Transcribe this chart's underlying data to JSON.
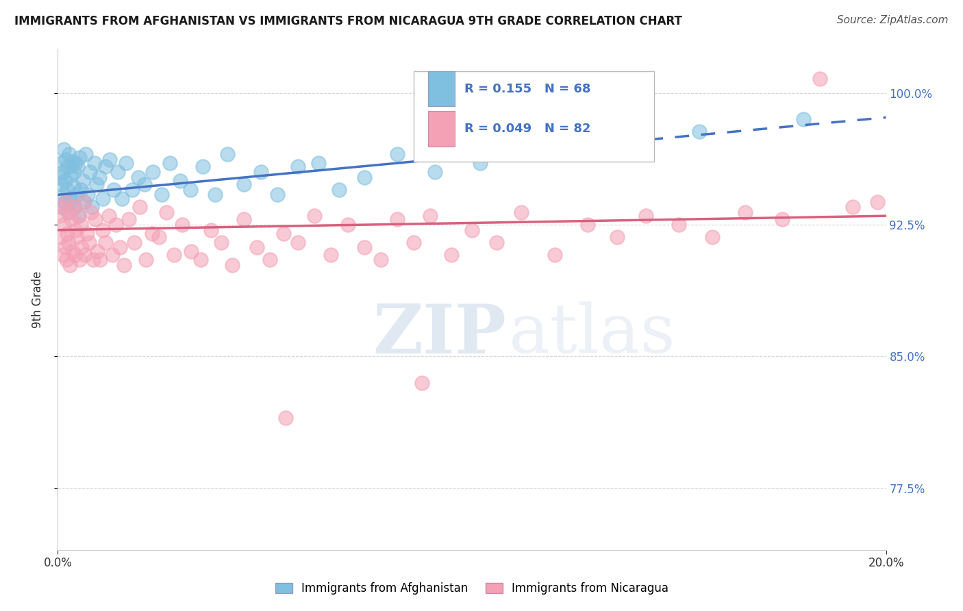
{
  "title": "IMMIGRANTS FROM AFGHANISTAN VS IMMIGRANTS FROM NICARAGUA 9TH GRADE CORRELATION CHART",
  "source": "Source: ZipAtlas.com",
  "ylabel": "9th Grade",
  "xmin": 0.0,
  "xmax": 20.0,
  "ymin": 74.0,
  "ymax": 102.5,
  "yticks": [
    77.5,
    85.0,
    92.5,
    100.0
  ],
  "ytick_labels": [
    "77.5%",
    "85.0%",
    "92.5%",
    "100.0%"
  ],
  "xtick_labels": [
    "0.0%",
    "20.0%"
  ],
  "series_afghanistan": {
    "label": "Immigrants from Afghanistan",
    "color": "#7fbfdf",
    "R": 0.155,
    "N": 68,
    "x": [
      0.05,
      0.07,
      0.09,
      0.1,
      0.12,
      0.14,
      0.15,
      0.17,
      0.18,
      0.2,
      0.22,
      0.24,
      0.25,
      0.27,
      0.29,
      0.31,
      0.33,
      0.35,
      0.37,
      0.39,
      0.41,
      0.43,
      0.45,
      0.47,
      0.5,
      0.53,
      0.56,
      0.6,
      0.64,
      0.68,
      0.72,
      0.77,
      0.82,
      0.88,
      0.94,
      1.0,
      1.08,
      1.16,
      1.25,
      1.35,
      1.45,
      1.55,
      1.65,
      1.8,
      1.95,
      2.1,
      2.3,
      2.5,
      2.7,
      2.95,
      3.2,
      3.5,
      3.8,
      4.1,
      4.5,
      4.9,
      5.3,
      5.8,
      6.3,
      6.8,
      7.4,
      8.2,
      9.1,
      10.2,
      11.5,
      13.0,
      15.5,
      18.0
    ],
    "y": [
      95.2,
      94.8,
      96.0,
      93.5,
      95.5,
      94.2,
      96.8,
      93.8,
      95.0,
      96.2,
      94.5,
      95.8,
      93.2,
      96.5,
      94.0,
      95.3,
      93.8,
      96.1,
      94.7,
      95.5,
      93.5,
      96.0,
      94.2,
      95.8,
      93.0,
      96.3,
      94.5,
      95.0,
      93.8,
      96.5,
      94.2,
      95.5,
      93.5,
      96.0,
      94.8,
      95.2,
      94.0,
      95.8,
      96.2,
      94.5,
      95.5,
      94.0,
      96.0,
      94.5,
      95.2,
      94.8,
      95.5,
      94.2,
      96.0,
      95.0,
      94.5,
      95.8,
      94.2,
      96.5,
      94.8,
      95.5,
      94.2,
      95.8,
      96.0,
      94.5,
      95.2,
      96.5,
      95.5,
      96.0,
      96.8,
      97.2,
      97.8,
      98.5
    ]
  },
  "series_nicaragua": {
    "label": "Immigrants from Nicaragua",
    "color": "#f4a0b5",
    "R": 0.049,
    "N": 82,
    "x": [
      0.05,
      0.08,
      0.1,
      0.12,
      0.15,
      0.17,
      0.19,
      0.21,
      0.23,
      0.26,
      0.28,
      0.3,
      0.33,
      0.35,
      0.38,
      0.4,
      0.43,
      0.46,
      0.49,
      0.52,
      0.55,
      0.58,
      0.62,
      0.66,
      0.7,
      0.75,
      0.8,
      0.85,
      0.9,
      0.96,
      1.02,
      1.09,
      1.16,
      1.24,
      1.32,
      1.4,
      1.5,
      1.6,
      1.72,
      1.85,
      1.98,
      2.12,
      2.28,
      2.45,
      2.62,
      2.8,
      3.0,
      3.22,
      3.45,
      3.7,
      3.95,
      4.22,
      4.5,
      4.8,
      5.12,
      5.45,
      5.8,
      6.2,
      6.6,
      7.0,
      7.4,
      7.8,
      8.2,
      8.6,
      9.0,
      9.5,
      10.0,
      10.6,
      11.2,
      12.0,
      12.8,
      13.5,
      14.2,
      15.0,
      15.8,
      16.6,
      17.5,
      18.4,
      19.2,
      19.8,
      5.5,
      8.8
    ],
    "y": [
      93.0,
      91.8,
      93.5,
      90.8,
      92.5,
      91.2,
      93.8,
      90.5,
      92.0,
      91.5,
      93.2,
      90.2,
      92.8,
      91.0,
      93.5,
      90.8,
      92.2,
      91.8,
      93.0,
      90.5,
      92.5,
      91.2,
      93.8,
      90.8,
      92.0,
      91.5,
      93.2,
      90.5,
      92.8,
      91.0,
      90.5,
      92.2,
      91.5,
      93.0,
      90.8,
      92.5,
      91.2,
      90.2,
      92.8,
      91.5,
      93.5,
      90.5,
      92.0,
      91.8,
      93.2,
      90.8,
      92.5,
      91.0,
      90.5,
      92.2,
      91.5,
      90.2,
      92.8,
      91.2,
      90.5,
      92.0,
      91.5,
      93.0,
      90.8,
      92.5,
      91.2,
      90.5,
      92.8,
      91.5,
      93.0,
      90.8,
      92.2,
      91.5,
      93.2,
      90.8,
      92.5,
      91.8,
      93.0,
      92.5,
      91.8,
      93.2,
      92.8,
      100.8,
      93.5,
      93.8,
      81.5,
      83.5
    ]
  },
  "trend_afg_intercept": 94.2,
  "trend_afg_slope": 0.22,
  "trend_afg_solid_end": 10.5,
  "trend_nic_intercept": 92.2,
  "trend_nic_slope": 0.04,
  "trend_afg_color": "#4472c4",
  "trend_nic_color": "#d9607e",
  "legend_afg_color": "#7fbfdf",
  "legend_nic_color": "#f4a0b5",
  "legend_text_color": "#4472c4",
  "watermark_zip": "ZIP",
  "watermark_atlas": "atlas",
  "background_color": "#ffffff",
  "grid_color": "#cccccc",
  "right_tick_color": "#4472c4"
}
